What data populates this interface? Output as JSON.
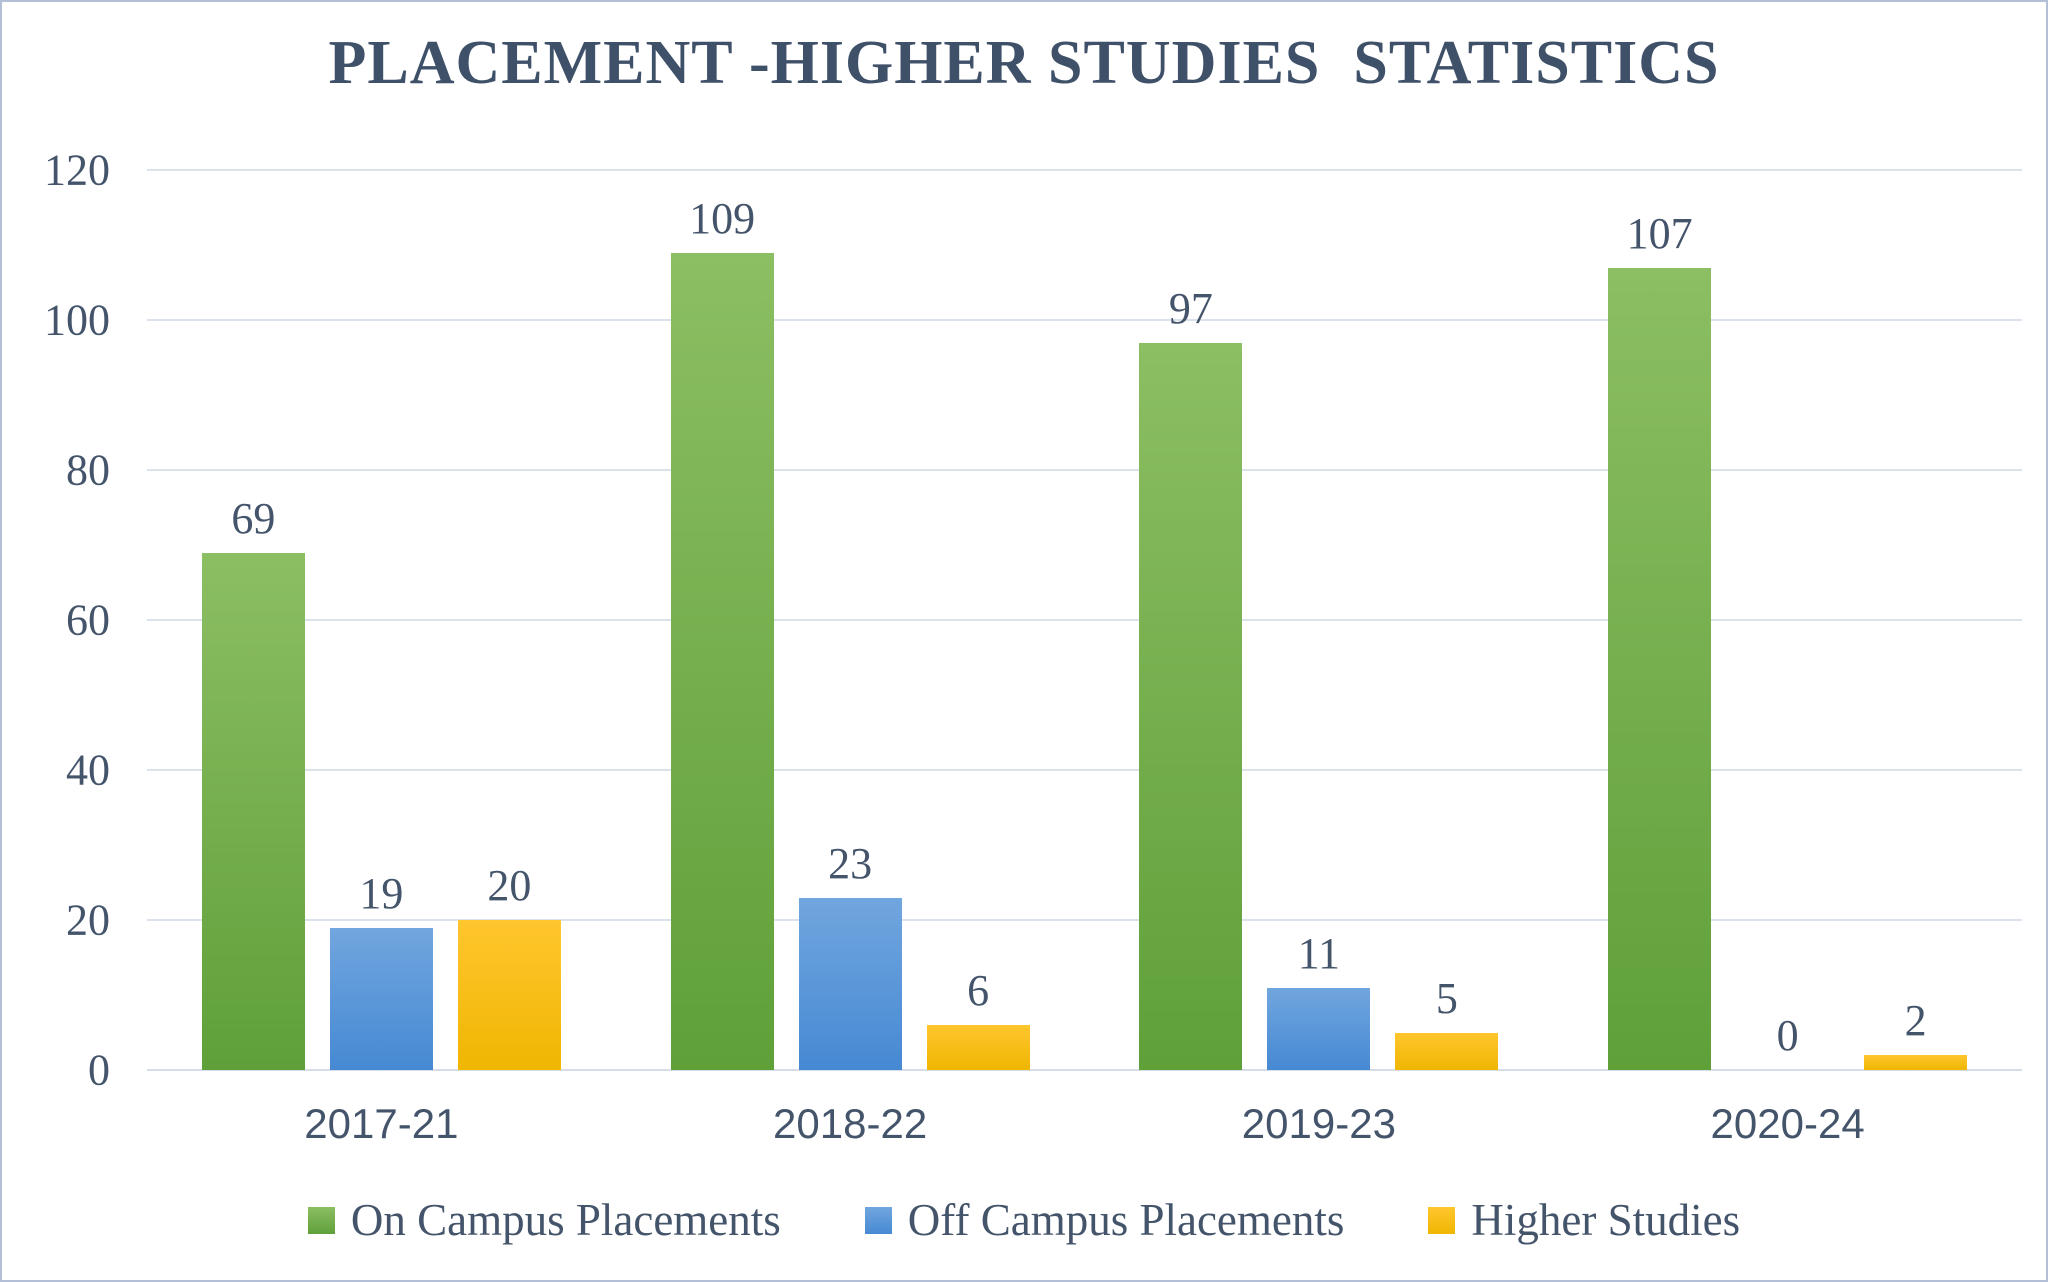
{
  "chart_data": {
    "type": "bar",
    "title": "PLACEMENT -HIGHER STUDIES  STATISTICS",
    "categories": [
      "2017-21",
      "2018-22",
      "2019-23",
      "2020-24"
    ],
    "series": [
      {
        "name": "On Campus Placements",
        "values": [
          69,
          109,
          97,
          107
        ],
        "color_top": "#8cbe63",
        "color_bottom": "#5fa039"
      },
      {
        "name": "Off Campus Placements",
        "values": [
          19,
          23,
          11,
          0
        ],
        "color_top": "#71a6de",
        "color_bottom": "#4689d3"
      },
      {
        "name": "Higher Studies",
        "values": [
          20,
          6,
          5,
          2
        ],
        "color_top": "#ffc62e",
        "color_bottom": "#efb602"
      }
    ],
    "y_axis": {
      "min": 0,
      "max": 120,
      "tick_interval": 20,
      "ticks": [
        0,
        20,
        40,
        60,
        80,
        100,
        120
      ]
    },
    "xlabel": "",
    "ylabel": "",
    "grid": true,
    "data_labels": true,
    "legend_position": "bottom"
  },
  "colors": {
    "text": "#44546a",
    "title": "#3f5069",
    "gridline": "#dce2ec",
    "axis_line": "#d7dde8",
    "frame_border": "#b3bfd4",
    "background": "#ffffff"
  }
}
